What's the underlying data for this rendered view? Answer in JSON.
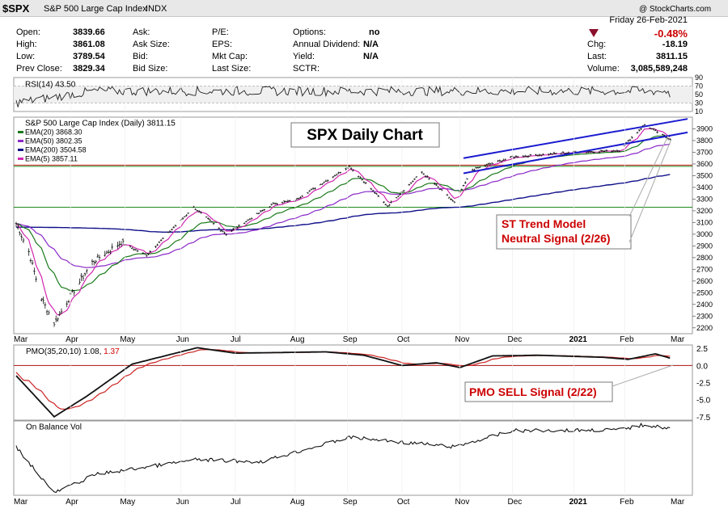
{
  "header": {
    "ticker": "$SPX",
    "name": "S&P 500 Large Cap Index",
    "exchange": "INDX",
    "watermark": "@ StockCharts.com"
  },
  "quote": {
    "labels": {
      "open": "Open:",
      "high": "High:",
      "low": "Low:",
      "prev_close": "Prev Close:",
      "ask": "Ask:",
      "ask_size": "Ask Size:",
      "bid": "Bid:",
      "bid_size": "Bid Size:",
      "pe": "P/E:",
      "eps": "EPS:",
      "mkt_cap": "Mkt Cap:",
      "last_size": "Last Size:",
      "options": "Options:",
      "annual_dividend": "Annual Dividend:",
      "yield": "Yield:",
      "sctr": "SCTR:",
      "chg": "Chg:",
      "last": "Last:",
      "volume": "Volume:"
    },
    "open": "3839.66",
    "high": "3861.08",
    "low": "3789.54",
    "prev_close": "3829.34",
    "options": "no",
    "annual_dividend": "N/A",
    "yield": "N/A",
    "date": "Friday  26-Feb-2021",
    "pct_change": "-0.48%",
    "chg": "-18.19",
    "last": "3811.15",
    "volume": "3,085,589,248",
    "down_color": "#cc0000"
  },
  "rsi_panel": {
    "label": "RSI(14) 43.50",
    "ticks": [
      "90",
      "70",
      "50",
      "30",
      "10"
    ],
    "value": 43.5
  },
  "price_panel": {
    "legend_title": "S&P 500 Large Cap Index (Daily) 3811.15",
    "ema_legend": [
      {
        "label": "EMA(20) 3868.30",
        "color": "#1a7a1a"
      },
      {
        "label": "EMA(50) 3802.35",
        "color": "#8a28c8"
      },
      {
        "label": "EMA(200) 3504.58",
        "color": "#10108a"
      },
      {
        "label": "EMA(5) 3857.11",
        "color": "#d028b0"
      }
    ],
    "title": "SPX Daily Chart",
    "annotation_trend": [
      "ST Trend Model",
      "Neutral Signal (2/26)"
    ],
    "hline_colors": [
      "#cc2222",
      "#1e8a1e",
      "#1e8a1e"
    ]
  },
  "pmo_panel": {
    "label_prefix": "PMO(35,20,10) 1.08,",
    "label_value": "1.37",
    "ticks": [
      "2.5",
      "0.0",
      "-2.5",
      "-5.0",
      "-7.5"
    ],
    "annotation": "PMO SELL Signal (2/22)"
  },
  "obv_panel": {
    "label": "On Balance Vol"
  },
  "x_axis": {
    "months": [
      "Mar",
      "Apr",
      "May",
      "Jun",
      "Jul",
      "Aug",
      "Sep",
      "Oct",
      "Nov",
      "Dec",
      "2021",
      "Feb",
      "Mar"
    ]
  },
  "chart_data": [
    {
      "type": "line",
      "title": "SPX Daily Chart",
      "series_name": "S&P 500 Large Cap Index (Daily)",
      "x": [
        "Mar",
        "Apr",
        "May",
        "Jun",
        "Jul",
        "Aug",
        "Sep",
        "Oct",
        "Nov",
        "Dec",
        "2021",
        "Feb",
        "Mar"
      ],
      "ylim": [
        2150,
        4000
      ],
      "y_ticks": [
        3900,
        3800,
        3700,
        3600,
        3500,
        3400,
        3300,
        3200,
        3100,
        3000,
        2900,
        2800,
        2700,
        2600,
        2500,
        2400,
        2300,
        2200
      ],
      "keypoints": [
        {
          "date": "2020-03-02",
          "value": 3090
        },
        {
          "date": "2020-03-09",
          "value": 2850
        },
        {
          "date": "2020-03-16",
          "value": 2450
        },
        {
          "date": "2020-03-23",
          "value": 2240
        },
        {
          "date": "2020-04-01",
          "value": 2470
        },
        {
          "date": "2020-04-13",
          "value": 2760
        },
        {
          "date": "2020-04-29",
          "value": 2930
        },
        {
          "date": "2020-05-13",
          "value": 2820
        },
        {
          "date": "2020-06-08",
          "value": 3230
        },
        {
          "date": "2020-06-26",
          "value": 3000
        },
        {
          "date": "2020-07-22",
          "value": 3260
        },
        {
          "date": "2020-08-03",
          "value": 3290
        },
        {
          "date": "2020-09-02",
          "value": 3580
        },
        {
          "date": "2020-09-23",
          "value": 3240
        },
        {
          "date": "2020-10-12",
          "value": 3530
        },
        {
          "date": "2020-10-30",
          "value": 3270
        },
        {
          "date": "2020-11-09",
          "value": 3550
        },
        {
          "date": "2020-12-01",
          "value": 3660
        },
        {
          "date": "2021-01-04",
          "value": 3700
        },
        {
          "date": "2021-01-29",
          "value": 3715
        },
        {
          "date": "2021-02-12",
          "value": 3935
        },
        {
          "date": "2021-02-26",
          "value": 3811
        }
      ],
      "emas": [
        {
          "name": "EMA(20)",
          "last": 3868.3,
          "color": "#1a7a1a"
        },
        {
          "name": "EMA(50)",
          "last": 3802.35,
          "color": "#8a28c8"
        },
        {
          "name": "EMA(200)",
          "last": 3504.58,
          "color": "#10108a"
        },
        {
          "name": "EMA(5)",
          "last": 3857.11,
          "color": "#d028b0"
        }
      ],
      "horizontal_lines": [
        3590,
        3580,
        3230
      ],
      "trend_channel": {
        "upper": [
          {
            "date": "2020-11-04",
            "value": 3650
          },
          {
            "date": "2021-03-01",
            "value": 3985
          }
        ],
        "lower": [
          {
            "date": "2020-11-04",
            "value": 3520
          },
          {
            "date": "2021-03-01",
            "value": 3870
          }
        ]
      }
    },
    {
      "type": "line",
      "title": "PMO(35,20,10)",
      "ylim": [
        -8,
        3
      ],
      "y_ticks": [
        2.5,
        0.0,
        -2.5,
        -5.0,
        -7.5
      ],
      "pmo_last": 1.08,
      "signal_last": 1.37
    },
    {
      "type": "line",
      "title": "RSI(14)",
      "ylim": [
        10,
        90
      ],
      "y_ticks": [
        90,
        70,
        50,
        30,
        10
      ],
      "last": 43.5
    },
    {
      "type": "line",
      "title": "On Balance Vol"
    }
  ]
}
